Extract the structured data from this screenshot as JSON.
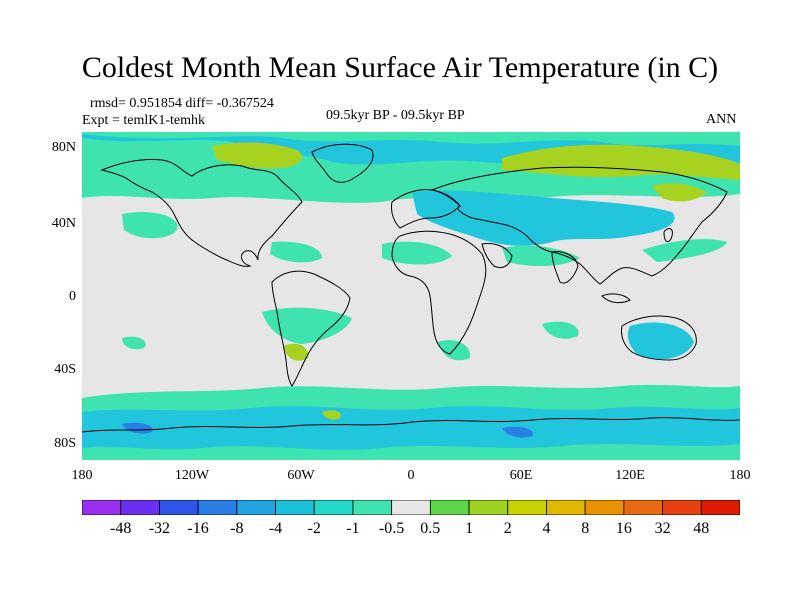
{
  "header": {
    "title": "Coldest Month Mean Surface Air Temperature (in C)",
    "stats": "rmsd= 0.951854 diff= -0.367524",
    "experiment": "Expt = temlK1-temhk",
    "period": "09.5kyr BP - 09.5kyr BP",
    "season": "ANN"
  },
  "map": {
    "latitude_labels": [
      {
        "text": "80N",
        "lat": 80
      },
      {
        "text": "40N",
        "lat": 40
      },
      {
        "text": "0",
        "lat": 0
      },
      {
        "text": "40S",
        "lat": -40
      },
      {
        "text": "80S",
        "lat": -80
      }
    ],
    "longitude_labels": [
      {
        "text": "180",
        "lon": -180
      },
      {
        "text": "120W",
        "lon": -120
      },
      {
        "text": "60W",
        "lon": -60
      },
      {
        "text": "0",
        "lon": 0
      },
      {
        "text": "60E",
        "lon": 60
      },
      {
        "text": "120E",
        "lon": 120
      },
      {
        "text": "180",
        "lon": 180
      }
    ],
    "lat_range": [
      -90,
      90
    ],
    "lon_range": [
      -180,
      180
    ],
    "background_color": "#e6e6e6",
    "coastline_color": "#000000"
  },
  "colorbar": {
    "labels": [
      "-48",
      "-32",
      "-16",
      "-8",
      "-4",
      "-2",
      "-1",
      "-0.5",
      "0.5",
      "1",
      "2",
      "4",
      "8",
      "16",
      "32",
      "48"
    ],
    "colors": [
      "#9a2ff0",
      "#6a2ff0",
      "#2f55e8",
      "#2a7fe6",
      "#22a3e2",
      "#1cc0d8",
      "#22d8c8",
      "#3ee3b0",
      "#e6e6e6",
      "#5ed648",
      "#9ed220",
      "#c8d200",
      "#e0b800",
      "#e89200",
      "#e86a10",
      "#e84010",
      "#e01a00"
    ]
  }
}
